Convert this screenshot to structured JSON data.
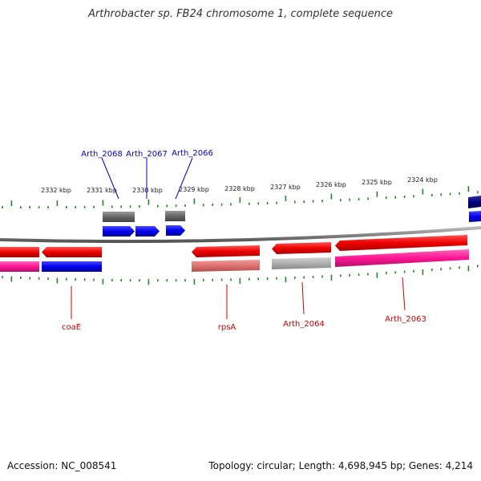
{
  "title": "Arthrobacter sp. FB24 chromosome 1, complete sequence",
  "footer": {
    "accession": "Accession: NC_008541",
    "summary": "Topology: circular; Length: 4,698,945 bp; Genes: 4,214"
  },
  "scale_labels": [
    "2332 kbp",
    "2331 kbp",
    "2330 kbp",
    "2329 kbp",
    "2328 kbp",
    "2327 kbp",
    "2326 kbp",
    "2325 kbp",
    "2324 kbp"
  ],
  "colors": {
    "forward_cds": "#0000ee",
    "reverse_cds": "#ee1111",
    "forward_label": "#0000cc",
    "reverse_label": "#cc0000",
    "tick": "#228822",
    "backbone": "#888888"
  },
  "forward_labels": [
    "Arth_2068",
    "Arth_2067",
    "Arth_2066"
  ],
  "reverse_labels": [
    "coaE",
    "rpsA",
    "Arth_2064",
    "Arth_2063"
  ]
}
